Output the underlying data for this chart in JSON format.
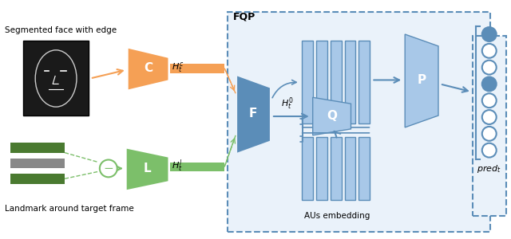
{
  "bg_color": "#ffffff",
  "label_segmented": "Segmented face with edge",
  "label_landmark": "Landmark around target frame",
  "label_aus": "AUs embedding",
  "label_pred": "$pred_t$",
  "orange_color": "#F5A055",
  "green_color": "#7CBF6A",
  "blue_color": "#5B8DB8",
  "light_blue": "#A8C8E8",
  "dashed_blue": "#5B8DB8",
  "fqp_label": "FQP",
  "c_label": "C",
  "l_label": "L",
  "f_label": "F",
  "p_label": "P",
  "q_label": "Q",
  "ht_c": "$H_t^c$",
  "ht_l": "$H_t^l$",
  "ht_0": "$H_t^0$"
}
